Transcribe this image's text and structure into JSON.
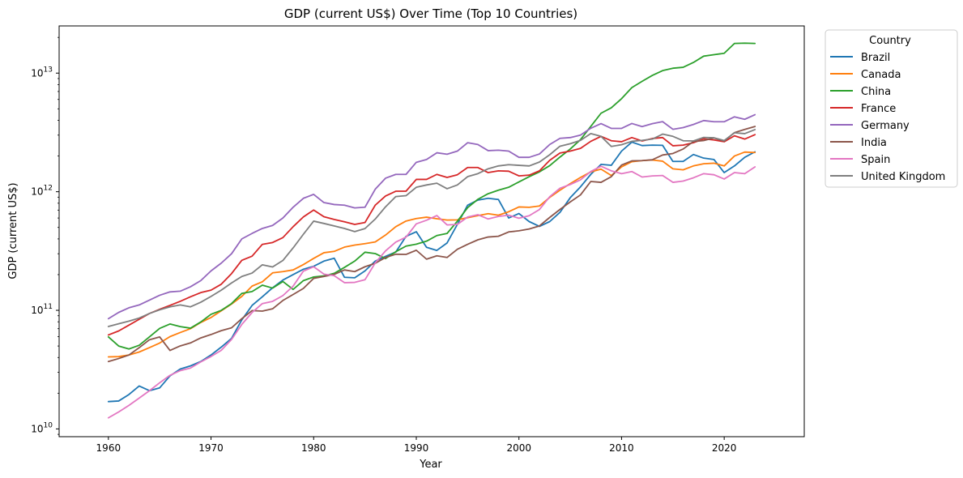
{
  "chart_data": {
    "type": "line",
    "title": "GDP (current US$) Over Time (Top 10 Countries)",
    "xlabel": "Year",
    "ylabel": "GDP (current US$)",
    "yscale": "log",
    "xlim": [
      1955.2,
      2027.8
    ],
    "ylim": [
      8600000000.0,
      25000000000000.0
    ],
    "xticks": [
      1960,
      1970,
      1980,
      1990,
      2000,
      2010,
      2020
    ],
    "yticks": [
      {
        "value": 10000000000.0,
        "label": "10^10"
      },
      {
        "value": 100000000000.0,
        "label": "10^11"
      },
      {
        "value": 1000000000000.0,
        "label": "10^12"
      },
      {
        "value": 10000000000000.0,
        "label": "10^13"
      }
    ],
    "grid": false,
    "legend": {
      "title": "Country",
      "placement": "outside-upper-right"
    },
    "x": [
      1960,
      1961,
      1962,
      1963,
      1964,
      1965,
      1966,
      1967,
      1968,
      1969,
      1970,
      1971,
      1972,
      1973,
      1974,
      1975,
      1976,
      1977,
      1978,
      1979,
      1980,
      1981,
      1982,
      1983,
      1984,
      1985,
      1986,
      1987,
      1988,
      1989,
      1990,
      1991,
      1992,
      1993,
      1994,
      1995,
      1996,
      1997,
      1998,
      1999,
      2000,
      2001,
      2002,
      2003,
      2004,
      2005,
      2006,
      2007,
      2008,
      2009,
      2010,
      2011,
      2012,
      2013,
      2014,
      2015,
      2016,
      2017,
      2018,
      2019,
      2020,
      2021,
      2022,
      2023
    ],
    "series": [
      {
        "name": "Brazil",
        "color": "#1f77b4",
        "values": [
          17000000000.0,
          17200000000.0,
          19500000000.0,
          23000000000.0,
          21000000000.0,
          22200000000.0,
          28000000000.0,
          32000000000.0,
          34000000000.0,
          37000000000.0,
          42000000000.0,
          49000000000.0,
          58000000000.0,
          83000000000.0,
          110000000000.0,
          130000000000.0,
          155000000000.0,
          180000000000.0,
          200000000000.0,
          222000000000.0,
          235000000000.0,
          260000000000.0,
          275000000000.0,
          190000000000.0,
          188000000000.0,
          215000000000.0,
          260000000000.0,
          285000000000.0,
          310000000000.0,
          420000000000.0,
          460000000000.0,
          340000000000.0,
          320000000000.0,
          370000000000.0,
          530000000000.0,
          770000000000.0,
          850000000000.0,
          880000000000.0,
          860000000000.0,
          600000000000.0,
          655000000000.0,
          560000000000.0,
          510000000000.0,
          560000000000.0,
          670000000000.0,
          890000000000.0,
          1100000000000.0,
          1400000000000.0,
          1700000000000.0,
          1670000000000.0,
          2200000000000.0,
          2620000000000.0,
          2450000000000.0,
          2470000000000.0,
          2460000000000.0,
          1800000000000.0,
          1800000000000.0,
          2060000000000.0,
          1920000000000.0,
          1870000000000.0,
          1450000000000.0,
          1650000000000.0,
          1950000000000.0,
          2170000000000.0
        ]
      },
      {
        "name": "Canada",
        "color": "#ff7f0e",
        "values": [
          40500000000.0,
          40700000000.0,
          42000000000.0,
          44500000000.0,
          48500000000.0,
          53000000000.0,
          60000000000.0,
          65000000000.0,
          70000000000.0,
          79000000000.0,
          87000000000.0,
          99000000000.0,
          113000000000.0,
          131000000000.0,
          160000000000.0,
          174000000000.0,
          207000000000.0,
          212000000000.0,
          219000000000.0,
          243000000000.0,
          274000000000.0,
          306000000000.0,
          314000000000.0,
          341000000000.0,
          355000000000.0,
          365000000000.0,
          377000000000.0,
          431000000000.0,
          507000000000.0,
          566000000000.0,
          594000000000.0,
          610000000000.0,
          592000000000.0,
          577000000000.0,
          579000000000.0,
          604000000000.0,
          629000000000.0,
          653000000000.0,
          634000000000.0,
          678000000000.0,
          744000000000.0,
          739000000000.0,
          758000000000.0,
          895000000000.0,
          1030000000000.0,
          1170000000000.0,
          1320000000000.0,
          1470000000000.0,
          1550000000000.0,
          1370000000000.0,
          1620000000000.0,
          1790000000000.0,
          1830000000000.0,
          1850000000000.0,
          1810000000000.0,
          1560000000000.0,
          1530000000000.0,
          1650000000000.0,
          1720000000000.0,
          1740000000000.0,
          1650000000000.0,
          2000000000000.0,
          2160000000000.0,
          2140000000000.0
        ]
      },
      {
        "name": "China",
        "color": "#2ca02c",
        "values": [
          59700000000.0,
          50000000000.0,
          47200000000.0,
          50700000000.0,
          59700000000.0,
          70400000000.0,
          76700000000.0,
          72900000000.0,
          70700000000.0,
          79700000000.0,
          92600000000.0,
          100000000000.0,
          114000000000.0,
          139000000000.0,
          144000000000.0,
          163000000000.0,
          154000000000.0,
          175000000000.0,
          150000000000.0,
          178000000000.0,
          191000000000.0,
          195000000000.0,
          205000000000.0,
          230000000000.0,
          260000000000.0,
          309000000000.0,
          301000000000.0,
          273000000000.0,
          312000000000.0,
          348000000000.0,
          361000000000.0,
          383000000000.0,
          427000000000.0,
          445000000000.0,
          564000000000.0,
          734000000000.0,
          863000000000.0,
          962000000000.0,
          1030000000000.0,
          1090000000000.0,
          1210000000000.0,
          1340000000000.0,
          1470000000000.0,
          1660000000000.0,
          1960000000000.0,
          2290000000000.0,
          2750000000000.0,
          3550000000000.0,
          4590000000000.0,
          5100000000000.0,
          6090000000000.0,
          7550000000000.0,
          8530000000000.0,
          9570000000000.0,
          10500000000000.0,
          11000000000000.0,
          11200000000000.0,
          12300000000000.0,
          13900000000000.0,
          14300000000000.0,
          14700000000000.0,
          17800000000000.0,
          17900000000000.0,
          17800000000000.0
        ]
      },
      {
        "name": "France",
        "color": "#d62728",
        "values": [
          62000000000.0,
          67000000000.0,
          75000000000.0,
          84000000000.0,
          94000000000.0,
          102000000000.0,
          110000000000.0,
          119000000000.0,
          130000000000.0,
          141000000000.0,
          148000000000.0,
          166000000000.0,
          204000000000.0,
          264000000000.0,
          286000000000.0,
          360000000000.0,
          373000000000.0,
          410000000000.0,
          507000000000.0,
          613000000000.0,
          701000000000.0,
          615000000000.0,
          584000000000.0,
          558000000000.0,
          530000000000.0,
          550000000000.0,
          770000000000.0,
          920000000000.0,
          1010000000000.0,
          1010000000000.0,
          1270000000000.0,
          1270000000000.0,
          1400000000000.0,
          1320000000000.0,
          1390000000000.0,
          1600000000000.0,
          1600000000000.0,
          1450000000000.0,
          1500000000000.0,
          1490000000000.0,
          1360000000000.0,
          1380000000000.0,
          1500000000000.0,
          1840000000000.0,
          2120000000000.0,
          2200000000000.0,
          2320000000000.0,
          2660000000000.0,
          2930000000000.0,
          2690000000000.0,
          2640000000000.0,
          2860000000000.0,
          2680000000000.0,
          2810000000000.0,
          2860000000000.0,
          2440000000000.0,
          2470000000000.0,
          2590000000000.0,
          2790000000000.0,
          2730000000000.0,
          2640000000000.0,
          2960000000000.0,
          2780000000000.0,
          3030000000000.0
        ]
      },
      {
        "name": "Germany",
        "color": "#9467bd",
        "values": [
          85000000000.0,
          96000000000.0,
          105000000000.0,
          111000000000.0,
          122000000000.0,
          134000000000.0,
          143000000000.0,
          145000000000.0,
          158000000000.0,
          178000000000.0,
          215000000000.0,
          250000000000.0,
          300000000000.0,
          400000000000.0,
          445000000000.0,
          490000000000.0,
          520000000000.0,
          600000000000.0,
          740000000000.0,
          880000000000.0,
          950000000000.0,
          810000000000.0,
          780000000000.0,
          770000000000.0,
          730000000000.0,
          740000000000.0,
          1050000000000.0,
          1300000000000.0,
          1400000000000.0,
          1400000000000.0,
          1770000000000.0,
          1870000000000.0,
          2130000000000.0,
          2070000000000.0,
          2200000000000.0,
          2590000000000.0,
          2500000000000.0,
          2220000000000.0,
          2240000000000.0,
          2200000000000.0,
          1950000000000.0,
          1950000000000.0,
          2080000000000.0,
          2500000000000.0,
          2820000000000.0,
          2860000000000.0,
          3000000000000.0,
          3430000000000.0,
          3750000000000.0,
          3420000000000.0,
          3420000000000.0,
          3760000000000.0,
          3540000000000.0,
          3750000000000.0,
          3900000000000.0,
          3360000000000.0,
          3470000000000.0,
          3690000000000.0,
          3980000000000.0,
          3890000000000.0,
          3890000000000.0,
          4280000000000.0,
          4080000000000.0,
          4460000000000.0
        ]
      },
      {
        "name": "India",
        "color": "#8c564b",
        "values": [
          37000000000.0,
          39200000000.0,
          42000000000.0,
          48400000000.0,
          56500000000.0,
          59600000000.0,
          45900000000.0,
          50100000000.0,
          53100000000.0,
          58500000000.0,
          62500000000.0,
          67400000000.0,
          71200000000.0,
          85000000000.0,
          99500000000.0,
          98500000000.0,
          103000000000.0,
          121000000000.0,
          136000000000.0,
          153000000000.0,
          186000000000.0,
          193000000000.0,
          201000000000.0,
          219000000000.0,
          212000000000.0,
          233000000000.0,
          249000000000.0,
          279000000000.0,
          297000000000.0,
          296000000000.0,
          321000000000.0,
          270000000000.0,
          288000000000.0,
          279000000000.0,
          327000000000.0,
          360000000000.0,
          393000000000.0,
          415000000000.0,
          421000000000.0,
          458000000000.0,
          468000000000.0,
          485000000000.0,
          515000000000.0,
          607000000000.0,
          709000000000.0,
          820000000000.0,
          940000000000.0,
          1220000000000.0,
          1200000000000.0,
          1340000000000.0,
          1680000000000.0,
          1820000000000.0,
          1830000000000.0,
          1860000000000.0,
          2040000000000.0,
          2100000000000.0,
          2290000000000.0,
          2650000000000.0,
          2700000000000.0,
          2840000000000.0,
          2670000000000.0,
          3150000000000.0,
          3350000000000.0,
          3550000000000.0
        ]
      },
      {
        "name": "Spain",
        "color": "#e377c2",
        "values": [
          12400000000.0,
          13900000000.0,
          15800000000.0,
          18200000000.0,
          21000000000.0,
          24500000000.0,
          28300000000.0,
          31000000000.0,
          32600000000.0,
          36700000000.0,
          40800000000.0,
          46000000000.0,
          56800000000.0,
          76000000000.0,
          95800000000.0,
          114000000000.0,
          119000000000.0,
          133000000000.0,
          160000000000.0,
          214000000000.0,
          233000000000.0,
          202000000000.0,
          196000000000.0,
          171000000000.0,
          172000000000.0,
          181000000000.0,
          251000000000.0,
          317000000000.0,
          376000000000.0,
          414000000000.0,
          536000000000.0,
          575000000000.0,
          630000000000.0,
          525000000000.0,
          530000000000.0,
          612000000000.0,
          640000000000.0,
          589000000000.0,
          619000000000.0,
          634000000000.0,
          598000000000.0,
          628000000000.0,
          708000000000.0,
          907000000000.0,
          1070000000000.0,
          1150000000000.0,
          1260000000000.0,
          1480000000000.0,
          1640000000000.0,
          1500000000000.0,
          1420000000000.0,
          1480000000000.0,
          1330000000000.0,
          1360000000000.0,
          1370000000000.0,
          1200000000000.0,
          1230000000000.0,
          1310000000000.0,
          1420000000000.0,
          1390000000000.0,
          1280000000000.0,
          1450000000000.0,
          1420000000000.0,
          1620000000000.0
        ]
      },
      {
        "name": "United Kingdom",
        "color": "#7f7f7f",
        "values": [
          73000000000.0,
          77000000000.0,
          81000000000.0,
          86000000000.0,
          94000000000.0,
          101000000000.0,
          107000000000.0,
          111000000000.0,
          107000000000.0,
          117000000000.0,
          131000000000.0,
          148000000000.0,
          170000000000.0,
          193000000000.0,
          206000000000.0,
          242000000000.0,
          232000000000.0,
          263000000000.0,
          336000000000.0,
          438000000000.0,
          565000000000.0,
          540000000000.0,
          515000000000.0,
          490000000000.0,
          461000000000.0,
          489000000000.0,
          588000000000.0,
          745000000000.0,
          910000000000.0,
          926000000000.0,
          1090000000000.0,
          1140000000000.0,
          1180000000000.0,
          1060000000000.0,
          1140000000000.0,
          1340000000000.0,
          1420000000000.0,
          1560000000000.0,
          1650000000000.0,
          1690000000000.0,
          1670000000000.0,
          1650000000000.0,
          1780000000000.0,
          2050000000000.0,
          2420000000000.0,
          2540000000000.0,
          2710000000000.0,
          3090000000000.0,
          2930000000000.0,
          2410000000000.0,
          2490000000000.0,
          2660000000000.0,
          2710000000000.0,
          2780000000000.0,
          3060000000000.0,
          2930000000000.0,
          2690000000000.0,
          2680000000000.0,
          2870000000000.0,
          2850000000000.0,
          2700000000000.0,
          3140000000000.0,
          3090000000000.0,
          3340000000000.0
        ]
      }
    ]
  }
}
